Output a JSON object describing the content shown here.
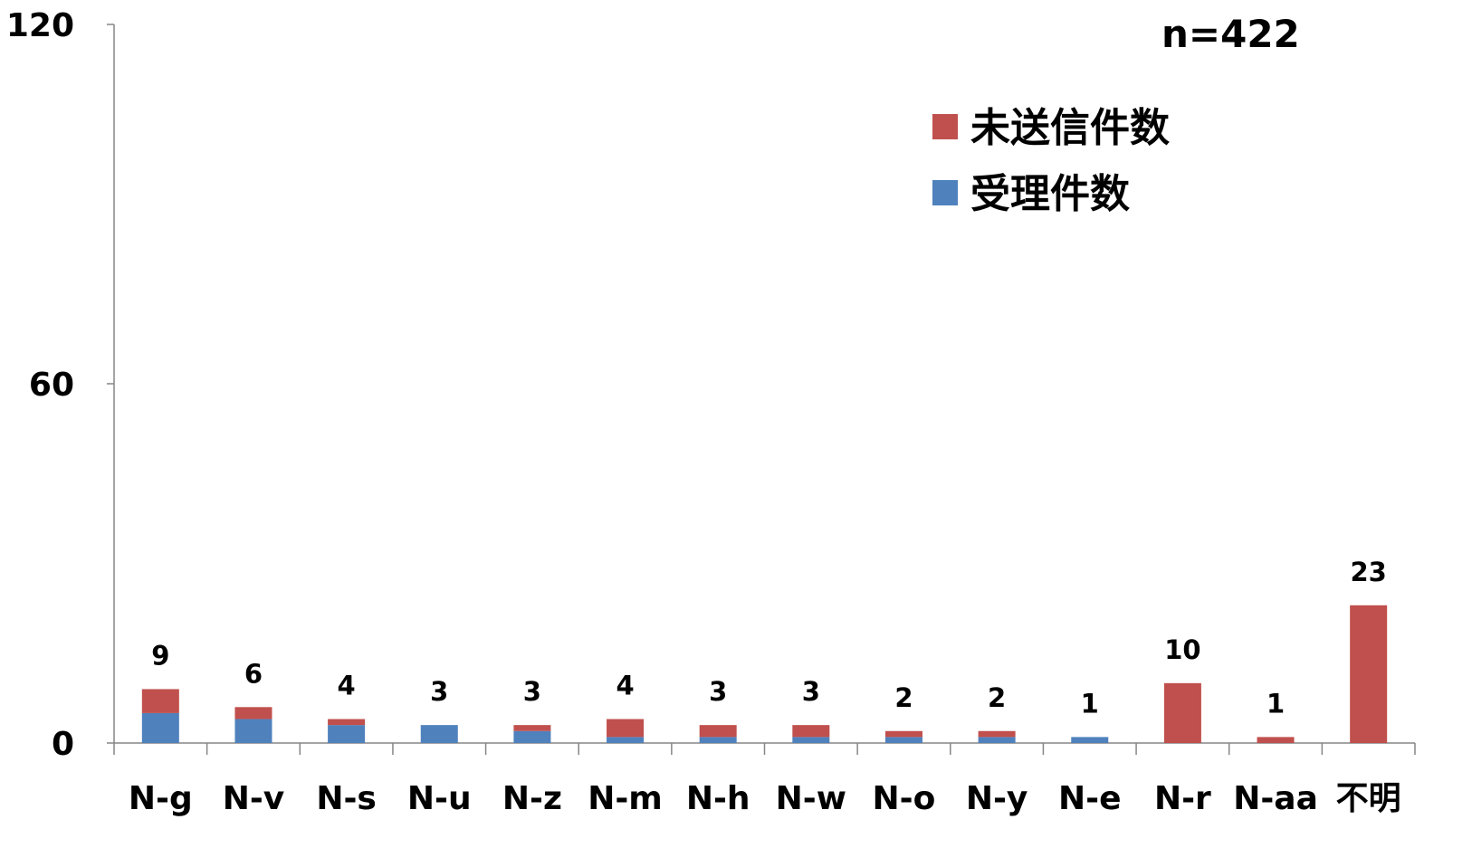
{
  "chart_data": {
    "type": "bar",
    "stacked": true,
    "title": "",
    "annotation": "n=422",
    "ylim": [
      0,
      120
    ],
    "yticks": [
      0,
      60,
      120
    ],
    "grid": false,
    "legend_position": "top-right",
    "categories": [
      "N-g",
      "N-v",
      "N-s",
      "N-u",
      "N-z",
      "N-m",
      "N-h",
      "N-w",
      "N-o",
      "N-y",
      "N-e",
      "N-r",
      "N-aa",
      "不明"
    ],
    "totals": [
      9,
      6,
      4,
      3,
      3,
      4,
      3,
      3,
      2,
      2,
      1,
      10,
      1,
      23
    ],
    "series": [
      {
        "name": "受理件数",
        "color": "#4f81bd",
        "values": [
          5,
          4,
          3,
          3,
          2,
          1,
          1,
          1,
          1,
          1,
          1,
          0,
          0,
          0
        ]
      },
      {
        "name": "未送信件数",
        "color": "#c0504d",
        "values": [
          4,
          2,
          1,
          0,
          1,
          3,
          2,
          2,
          1,
          1,
          0,
          10,
          1,
          23
        ]
      }
    ],
    "legend_order": [
      "未送信件数",
      "受理件数"
    ]
  }
}
